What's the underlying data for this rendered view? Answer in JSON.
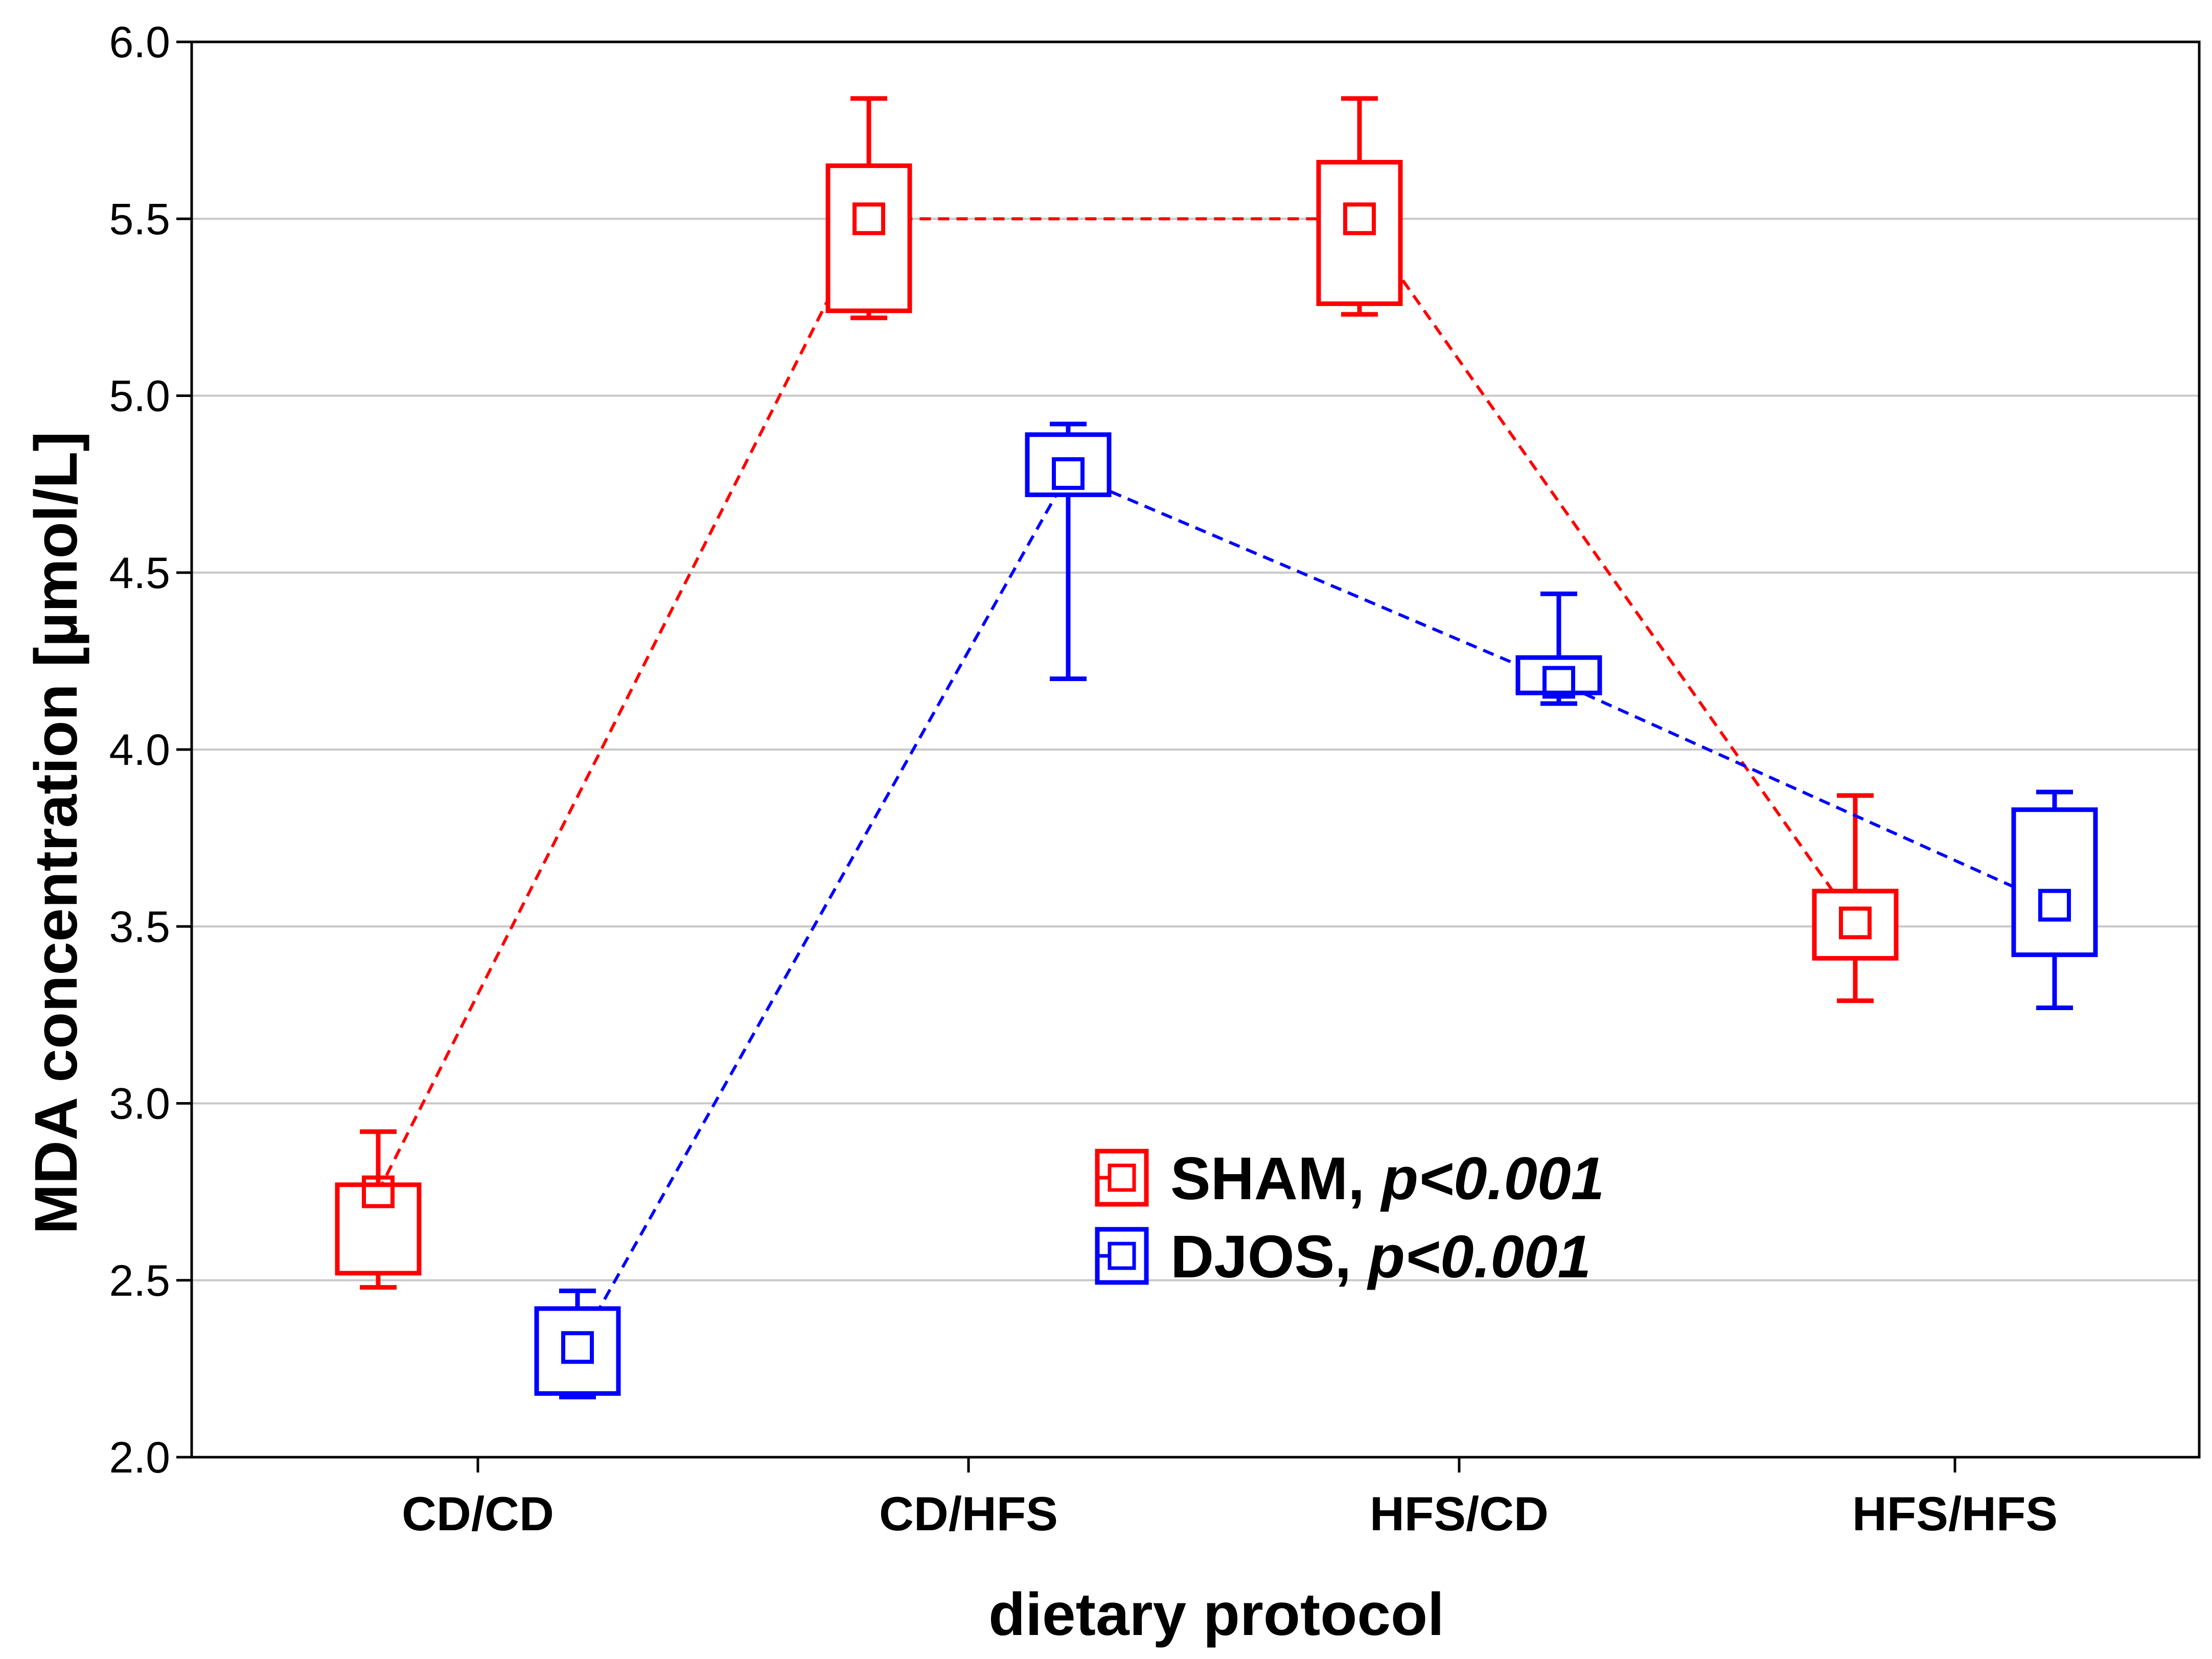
{
  "chart_data": {
    "type": "box",
    "xlabel": "dietary protocol",
    "ylabel": "MDA concentration [µmol/L]",
    "ylim": [
      2.0,
      6.0
    ],
    "yticks": [
      "2.0",
      "2.5",
      "3.0",
      "3.5",
      "4.0",
      "4.5",
      "5.0",
      "5.5",
      "6.0"
    ],
    "categories": [
      "CD/CD",
      "CD/HFS",
      "HFS/CD",
      "HFS/HFS"
    ],
    "grid": true,
    "legend_position": "center-bottom",
    "series": [
      {
        "name": "SHAM",
        "pvalue": "p<0.001",
        "color": "#ff0000",
        "points": [
          {
            "category": "CD/CD",
            "median": 2.75,
            "q1": 2.52,
            "q3": 2.77,
            "min": 2.48,
            "max": 2.92
          },
          {
            "category": "CD/HFS",
            "median": 5.5,
            "q1": 5.24,
            "q3": 5.65,
            "min": 5.22,
            "max": 5.84
          },
          {
            "category": "HFS/CD",
            "median": 5.5,
            "q1": 5.26,
            "q3": 5.66,
            "min": 5.23,
            "max": 5.84
          },
          {
            "category": "HFS/HFS",
            "median": 3.51,
            "q1": 3.41,
            "q3": 3.6,
            "min": 3.29,
            "max": 3.87
          }
        ]
      },
      {
        "name": "DJOS",
        "pvalue": "p<0.001",
        "color": "#0000ff",
        "points": [
          {
            "category": "CD/CD",
            "median": 2.31,
            "q1": 2.18,
            "q3": 2.42,
            "min": 2.17,
            "max": 2.47
          },
          {
            "category": "CD/HFS",
            "median": 4.78,
            "q1": 4.72,
            "q3": 4.89,
            "min": 4.2,
            "max": 4.92
          },
          {
            "category": "HFS/CD",
            "median": 4.19,
            "q1": 4.16,
            "q3": 4.26,
            "min": 4.13,
            "max": 4.44
          },
          {
            "category": "HFS/HFS",
            "median": 3.56,
            "q1": 3.42,
            "q3": 3.83,
            "min": 3.27,
            "max": 3.88
          }
        ]
      }
    ]
  }
}
